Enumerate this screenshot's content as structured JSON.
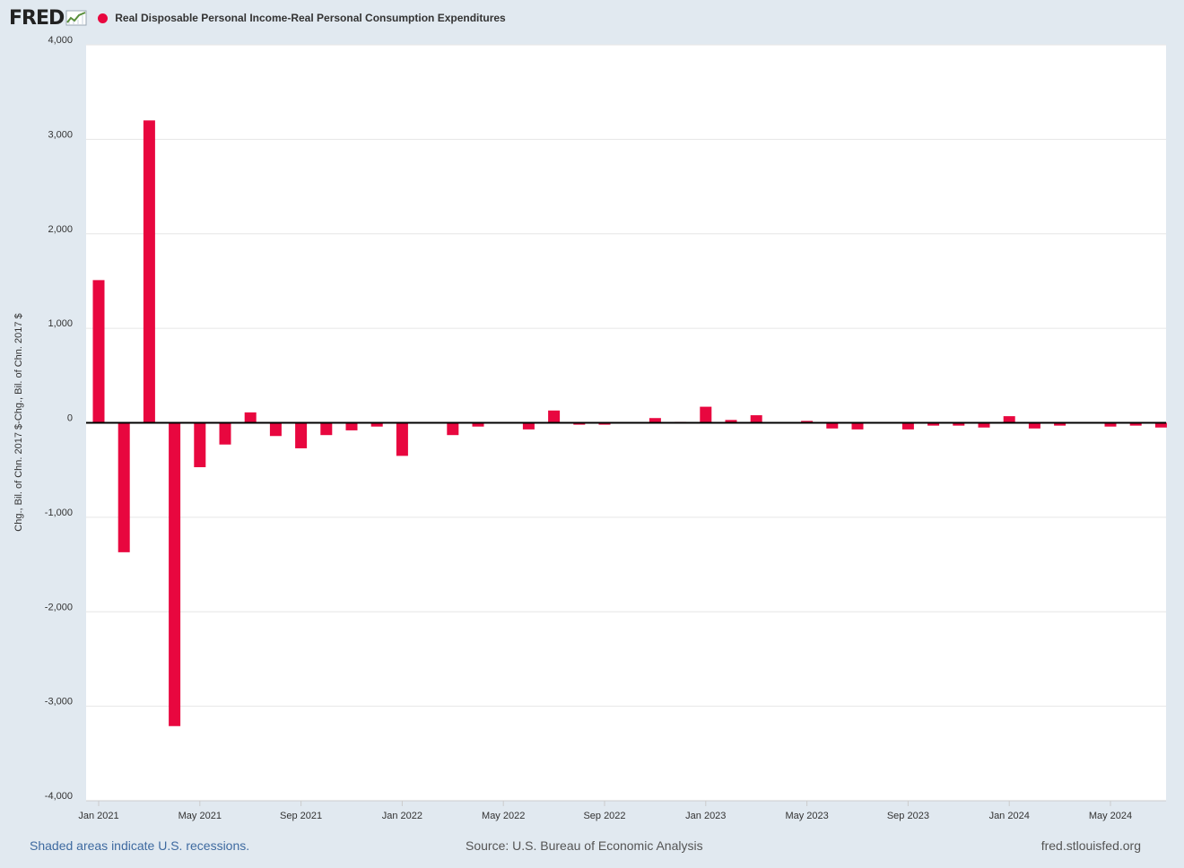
{
  "header": {
    "logo_text": "FRED",
    "logo_icon": "fred-line-chart-icon"
  },
  "footer": {
    "recession_note": "Shaded areas indicate U.S. recessions.",
    "source": "Source: U.S. Bureau of Economic Analysis",
    "site": "fred.stlouisfed.org"
  },
  "chart_data": {
    "type": "bar",
    "title": "",
    "xlabel": "",
    "ylabel": "Chg., Bil. of Chn. 2017 $-Chg., Bil. of Chn. 2017 $",
    "ylim": [
      -4000,
      4000
    ],
    "y_ticks": [
      -4000,
      -3000,
      -2000,
      -1000,
      0,
      1000,
      2000,
      3000,
      4000
    ],
    "y_tick_labels": [
      "-4,000",
      "-3,000",
      "-2,000",
      "-1,000",
      "0",
      "1,000",
      "2,000",
      "3,000",
      "4,000"
    ],
    "x_tick_labels": [
      "Jan 2021",
      "May 2021",
      "Sep 2021",
      "Jan 2022",
      "May 2022",
      "Sep 2022",
      "Jan 2023",
      "May 2023",
      "Sep 2023",
      "Jan 2024",
      "May 2024"
    ],
    "x_tick_dates": [
      "2021-01",
      "2021-05",
      "2021-09",
      "2022-01",
      "2022-05",
      "2022-09",
      "2023-01",
      "2023-05",
      "2023-09",
      "2024-01",
      "2024-05"
    ],
    "grid": true,
    "legend_position": "top-left",
    "colors": {
      "series": "#e8073f",
      "plot_bg": "#ffffff",
      "page_bg": "#e1e9f0"
    },
    "categories": [
      "2021-01",
      "2021-02",
      "2021-03",
      "2021-04",
      "2021-05",
      "2021-06",
      "2021-07",
      "2021-08",
      "2021-09",
      "2021-10",
      "2021-11",
      "2021-12",
      "2022-01",
      "2022-02",
      "2022-03",
      "2022-04",
      "2022-05",
      "2022-06",
      "2022-07",
      "2022-08",
      "2022-09",
      "2022-10",
      "2022-11",
      "2022-12",
      "2023-01",
      "2023-02",
      "2023-03",
      "2023-04",
      "2023-05",
      "2023-06",
      "2023-07",
      "2023-08",
      "2023-09",
      "2023-10",
      "2023-11",
      "2023-12",
      "2024-01",
      "2024-02",
      "2024-03",
      "2024-04",
      "2024-05",
      "2024-06",
      "2024-07"
    ],
    "series": [
      {
        "name": "Real Disposable Personal Income-Real Personal Consumption Expenditures",
        "values": [
          1510,
          -1370,
          3200,
          -3210,
          -470,
          -230,
          110,
          -140,
          -270,
          -130,
          -80,
          -40,
          -350,
          0,
          -130,
          -40,
          0,
          -70,
          130,
          -20,
          -20,
          0,
          50,
          10,
          170,
          30,
          80,
          0,
          20,
          -60,
          -70,
          0,
          -70,
          -30,
          -30,
          -50,
          70,
          -60,
          -30,
          0,
          -40,
          -30,
          -50
        ]
      }
    ]
  }
}
